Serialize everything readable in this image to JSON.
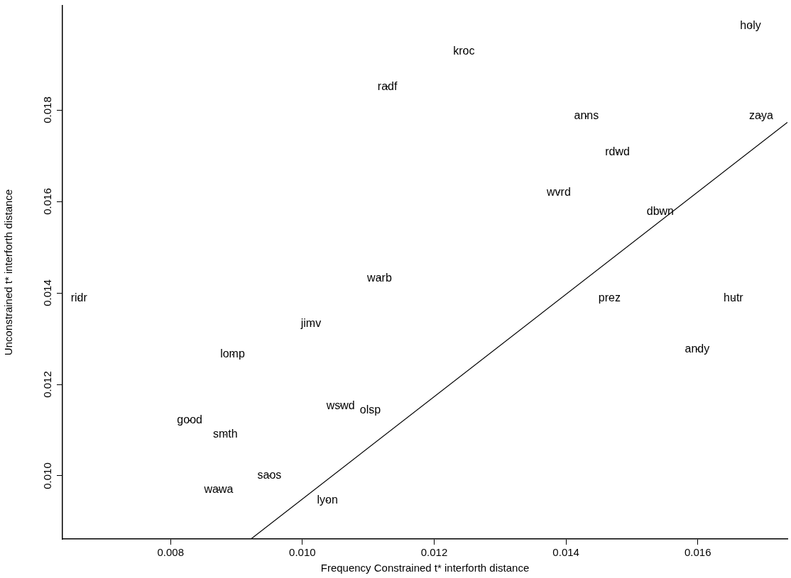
{
  "chart_data": {
    "type": "scatter",
    "xlabel": "Frequency Constrained t* interforth distance",
    "ylabel": "Unconstrained t* interforth distance",
    "xlim": [
      0.00636,
      0.01736
    ],
    "ylim": [
      0.00862,
      0.02028
    ],
    "xticks": [
      0.008,
      {
        "value": 0.01,
        "label": "0.010"
      },
      0.012,
      0.014,
      0.016
    ],
    "yticks": [
      {
        "value": 0.01,
        "label": "0.010"
      },
      0.012,
      0.014,
      0.016,
      0.018
    ],
    "grid": false,
    "legend": false,
    "series": [
      {
        "color": "#000000",
        "x": [
          0.0168,
          0.01245,
          0.01129,
          0.01431,
          0.01696,
          0.01478,
          0.01389,
          0.01543,
          0.01117,
          0.00661,
          0.01466,
          0.01654,
          0.01013,
          0.01599,
          0.00894,
          0.01058,
          0.01103,
          0.00829,
          0.00883,
          0.0095,
          0.00873,
          0.01038
        ],
        "values": [
          0.01984,
          0.01928,
          0.01851,
          0.01786,
          0.01786,
          0.01707,
          0.0162,
          0.01577,
          0.01432,
          0.01388,
          0.01388,
          0.01388,
          0.01332,
          0.01277,
          0.01265,
          0.01153,
          0.01144,
          0.01121,
          0.0109,
          0.01,
          0.00969,
          0.00946
        ],
        "value_labels": [
          "holy",
          "kroc",
          "radf",
          "anns",
          "zaya",
          "rdwd",
          "wvrd",
          "dbwn",
          "warb",
          "ridr",
          "prez",
          "hutr",
          "jimv",
          "andy",
          "lomp",
          "wswd",
          "olsp",
          "good",
          "smth",
          "saos",
          "wawa",
          "lyon"
        ]
      },
      {
        "type": "line",
        "color": "#000000",
        "x": [
          0.00922,
          0.01736
        ],
        "values": [
          0.00862,
          0.01773
        ]
      }
    ]
  }
}
